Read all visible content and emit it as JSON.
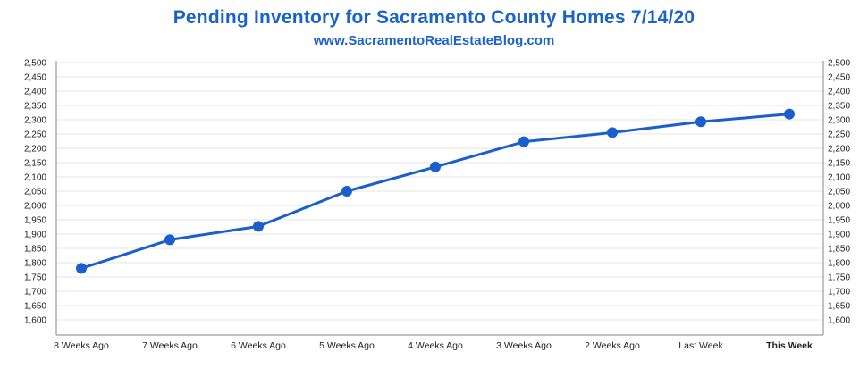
{
  "chart_data": {
    "type": "line",
    "title": "Pending Inventory for Sacramento County Homes 7/14/20",
    "subtitle": "www.SacramentoRealEstateBlog.com",
    "categories": [
      "8 Weeks Ago",
      "7 Weeks Ago",
      "6 Weeks Ago",
      "5 Weeks Ago",
      "4 Weeks Ago",
      "3 Weeks Ago",
      "2 Weeks Ago",
      "Last Week",
      "This Week"
    ],
    "series": [
      {
        "values": [
          1780,
          1880,
          1927,
          2050,
          2135,
          2223,
          2255,
          2293,
          2320
        ]
      }
    ],
    "ylim": [
      1550,
      2500
    ],
    "yticks": [
      1600,
      1650,
      1700,
      1750,
      1800,
      1850,
      1900,
      1950,
      2000,
      2050,
      2100,
      2150,
      2200,
      2250,
      2300,
      2350,
      2400,
      2450,
      2500
    ],
    "ytick_labels": [
      "1,600",
      "1,650",
      "1,700",
      "1,750",
      "1,800",
      "1,850",
      "1,900",
      "1,950",
      "2,000",
      "2,050",
      "2,100",
      "2,150",
      "2,200",
      "2,250",
      "2,300",
      "2,350",
      "2,400",
      "2,450",
      "2,500"
    ],
    "secondary_y_axis": true,
    "highlight_category": "This Week",
    "grid": true,
    "colors": {
      "line": "#1a5fcc",
      "title": "#1a63c8",
      "highlight_label": "#1a63c8",
      "grid": "#e6e6e6"
    }
  }
}
